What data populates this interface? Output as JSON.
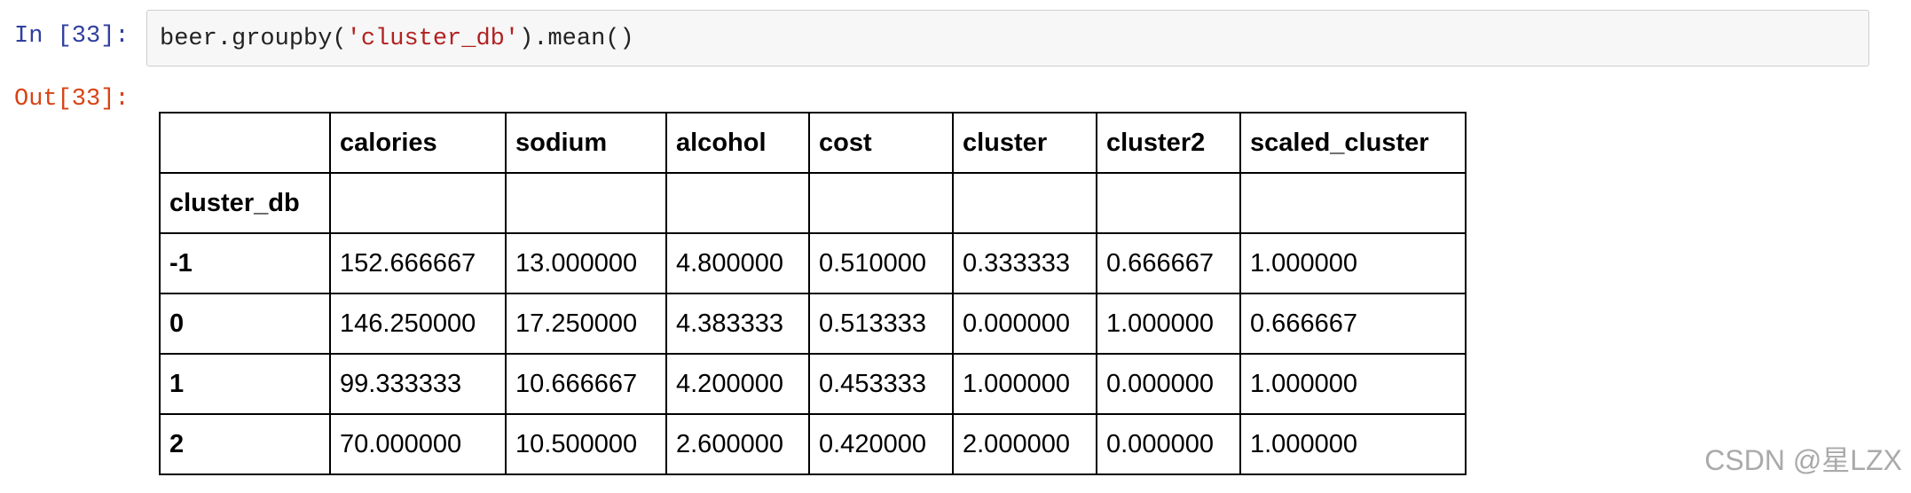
{
  "cell": {
    "in_prompt": "In [33]:",
    "code": [
      "beer.groupby(",
      "'cluster_db'",
      ").mean()"
    ],
    "out_prompt": "Out[33]:"
  },
  "table": {
    "columns": [
      "calories",
      "sodium",
      "alcohol",
      "cost",
      "cluster",
      "cluster2",
      "scaled_cluster"
    ],
    "index_name": "cluster_db",
    "rows": [
      {
        "index": "-1",
        "values": [
          "152.666667",
          "13.000000",
          "4.800000",
          "0.510000",
          "0.333333",
          "0.666667",
          "1.000000"
        ]
      },
      {
        "index": "0",
        "values": [
          "146.250000",
          "17.250000",
          "4.383333",
          "0.513333",
          "0.000000",
          "1.000000",
          "0.666667"
        ]
      },
      {
        "index": "1",
        "values": [
          "99.333333",
          "10.666667",
          "4.200000",
          "0.453333",
          "1.000000",
          "0.000000",
          "1.000000"
        ]
      },
      {
        "index": "2",
        "values": [
          "70.000000",
          "10.500000",
          "2.600000",
          "0.420000",
          "2.000000",
          "0.000000",
          "1.000000"
        ]
      }
    ]
  },
  "watermark": "CSDN @星LZX"
}
